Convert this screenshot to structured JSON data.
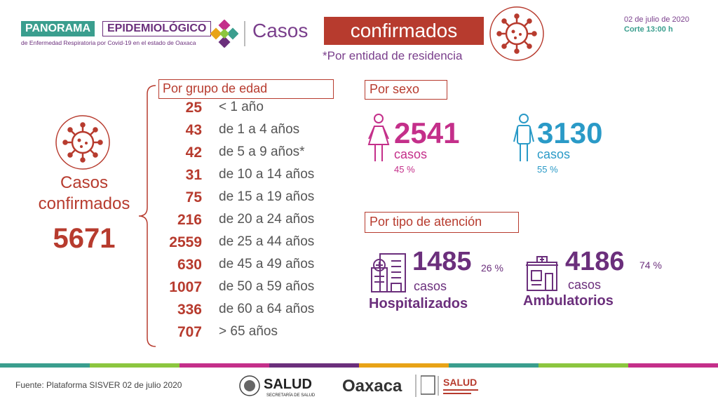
{
  "header": {
    "logo_panorama": "PANORAMA",
    "logo_epidemiologico": "EPIDEMIOLÓGICO",
    "logo_subtitle": "de Enfermedad Respiratoria por Covid-19 en el estado de Oaxaca",
    "title_casos": "Casos",
    "title_confirmados": "confirmados",
    "note": "*Por entidad de residencia",
    "date": "02 de julio de 2020",
    "cutoff": "Corte 13:00 h"
  },
  "total": {
    "label": "Casos confirmados",
    "value": "5671"
  },
  "age": {
    "title": "Por grupo de edad",
    "rows": [
      {
        "value": "25",
        "label": "< 1 año"
      },
      {
        "value": "43",
        "label": "de 1 a 4 años"
      },
      {
        "value": "42",
        "label": "de 5 a 9 años*"
      },
      {
        "value": "31",
        "label": "de 10 a 14 años"
      },
      {
        "value": "75",
        "label": "de 15 a 19 años"
      },
      {
        "value": "216",
        "label": "de 20 a 24 años"
      },
      {
        "value": "2559",
        "label": "de 25 a 44 años"
      },
      {
        "value": "630",
        "label": "de 45 a 49 años"
      },
      {
        "value": "1007",
        "label": "de 50 a 59 años"
      },
      {
        "value": "336",
        "label": "de 60 a 64 años"
      },
      {
        "value": "707",
        "label": "> 65 años"
      }
    ]
  },
  "sex": {
    "title": "Por sexo",
    "female": {
      "value": "2541",
      "unit": "casos",
      "pct": "45 %"
    },
    "male": {
      "value": "3130",
      "unit": "casos",
      "pct": "55 %"
    }
  },
  "attention": {
    "title": "Por tipo de atención",
    "hospital": {
      "value": "1485",
      "pct": "26 %",
      "unit": "casos",
      "label": "Hospitalizados"
    },
    "ambulatory": {
      "value": "4186",
      "pct": "74 %",
      "unit": "casos",
      "label": "Ambulatorios"
    }
  },
  "footer": {
    "source": "Fuente: Plataforma SISVER 02 de julio 2020",
    "logo_salud": "SALUD",
    "logo_salud_sub": "SECRETARÍA DE SALUD",
    "logo_oaxaca": "Oaxaca",
    "logo_salud2": "SALUD"
  },
  "colors": {
    "accent_red": "#b73b2e",
    "purple": "#6b2f7c",
    "teal": "#3a9e8e",
    "female": "#c42f8a",
    "male": "#2a9ac7",
    "stripe": [
      "#3a9e8e",
      "#8cc63f",
      "#c42f8a",
      "#6b2f7c",
      "#e8a317",
      "#3a9e8e",
      "#8cc63f",
      "#c42f8a"
    ]
  },
  "icons": [
    "virus-icon",
    "female-icon",
    "male-icon",
    "hospital-icon",
    "ambulatory-icon"
  ]
}
